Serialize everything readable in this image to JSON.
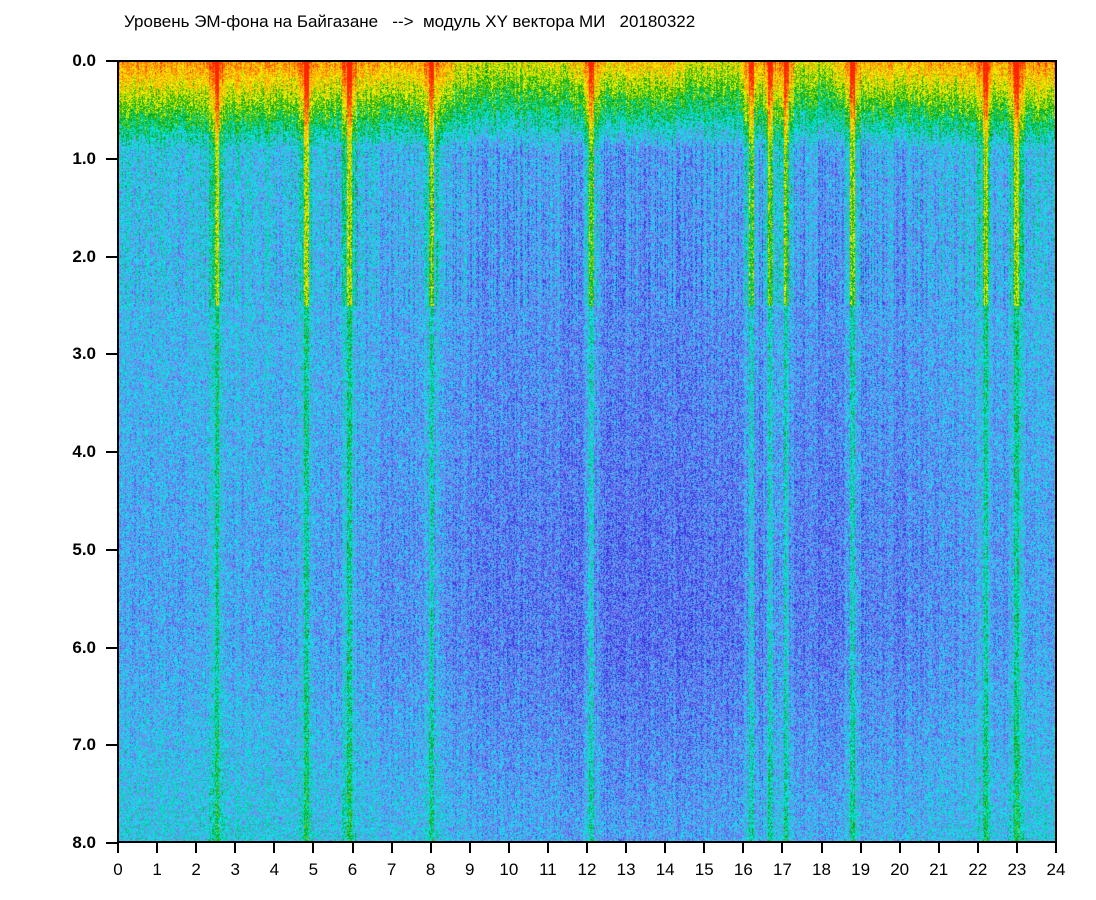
{
  "chart_data": {
    "type": "heatmap",
    "title": "Уровень ЭМ-фона на Байгазане   -->  модуль XY вектора МИ   20180322",
    "xlabel": "",
    "ylabel": "",
    "xlim": [
      0,
      24
    ],
    "ylim": [
      8.0,
      0.0
    ],
    "x_ticks": [
      "0",
      "1",
      "2",
      "3",
      "4",
      "5",
      "6",
      "7",
      "8",
      "9",
      "10",
      "11",
      "12",
      "13",
      "14",
      "15",
      "16",
      "17",
      "18",
      "19",
      "20",
      "21",
      "22",
      "23",
      "24"
    ],
    "y_ticks": [
      "0.0",
      "1.0",
      "2.0",
      "3.0",
      "4.0",
      "5.0",
      "6.0",
      "7.0",
      "8.0"
    ],
    "colormap": [
      "#2a2ae0",
      "#7f86f0",
      "#00f0f0",
      "#00a000",
      "#ffff00",
      "#ff9900",
      "#ff2000"
    ],
    "high_level_depth": 0.9,
    "bright_streak_hours": [
      2.5,
      4.8,
      5.9,
      8.0,
      12.1,
      16.2,
      16.7,
      17.1,
      18.8,
      22.2,
      23.0
    ],
    "quiet_top_hours": [
      [
        8.6,
        11.5
      ],
      [
        14.5,
        15.9
      ],
      [
        17.3,
        18.3
      ]
    ]
  }
}
